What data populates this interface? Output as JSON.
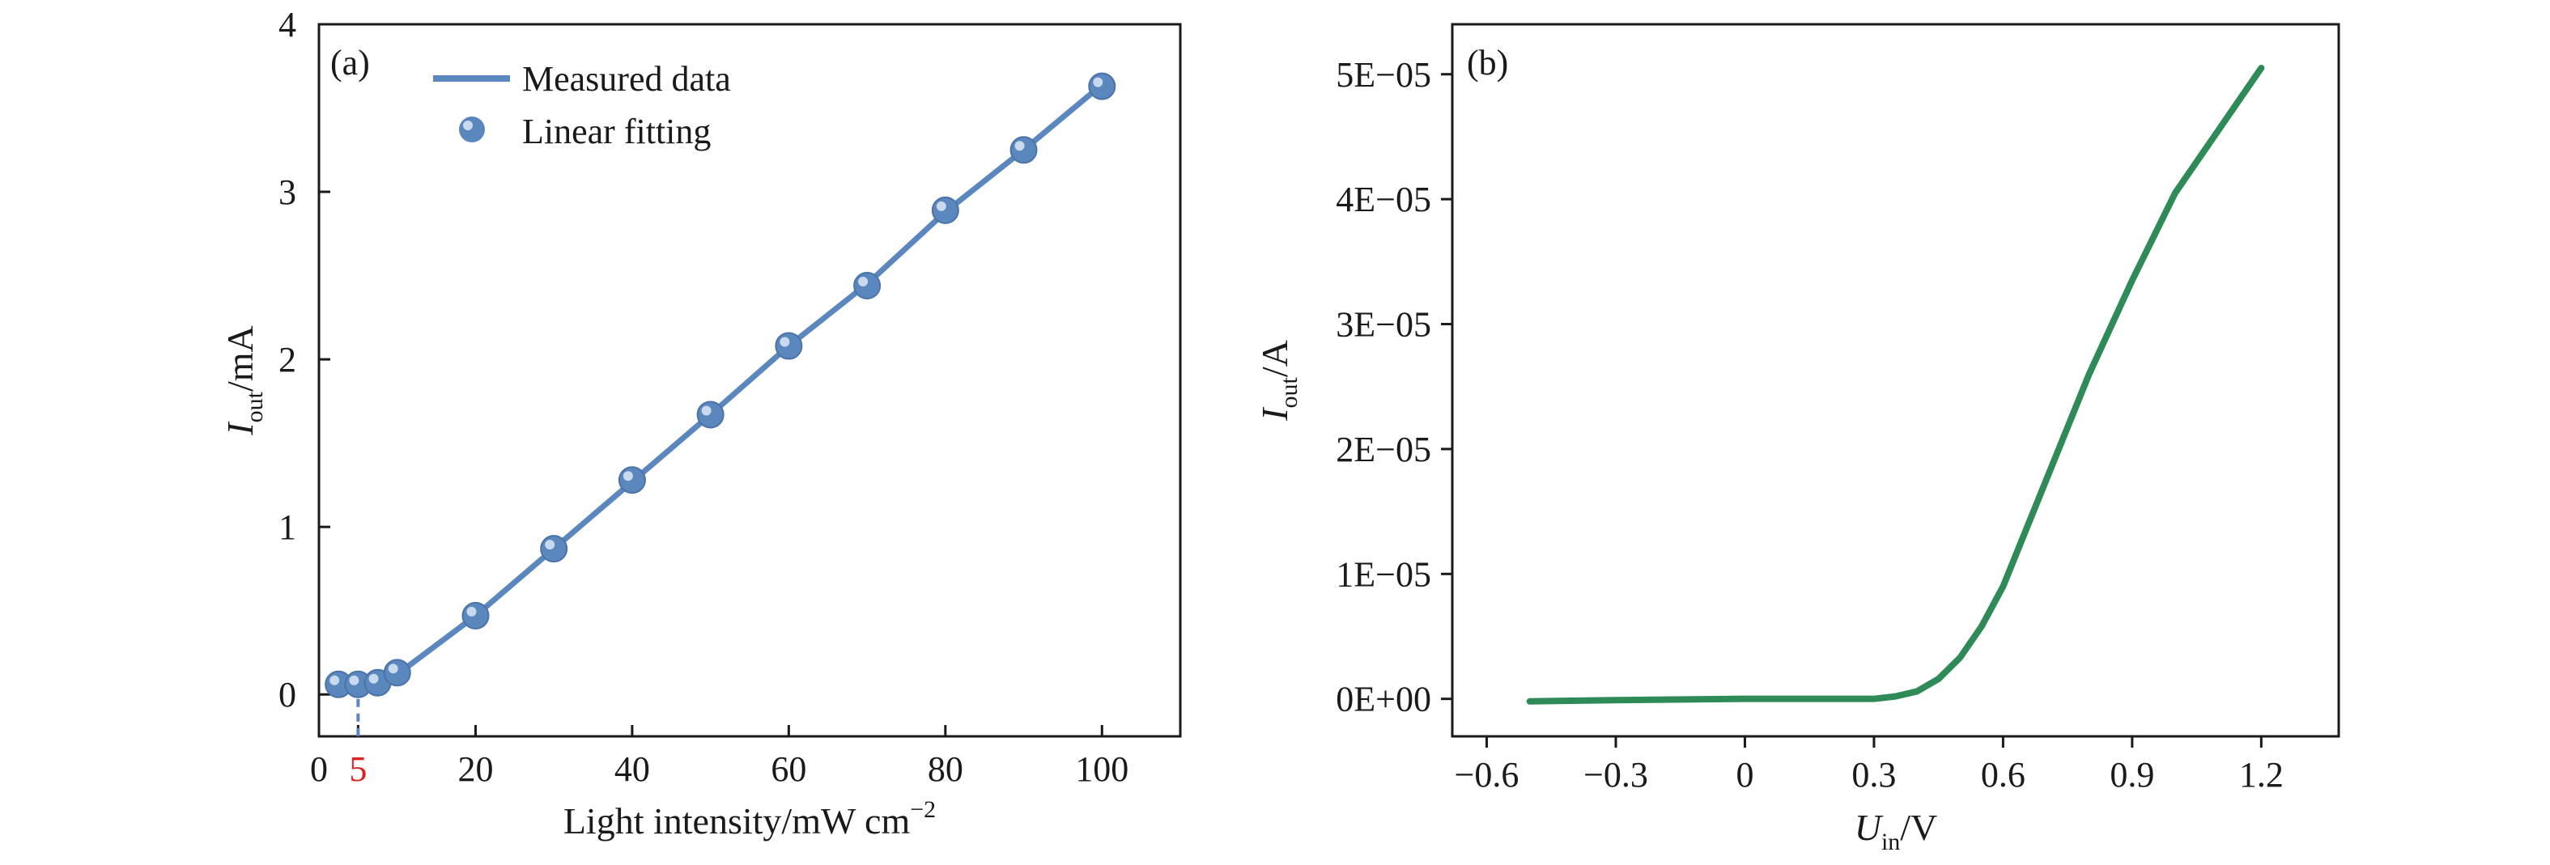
{
  "chart_data": [
    {
      "panel_label": "(a)",
      "type": "line",
      "xlabel": "Light intensity/mW cm",
      "xlabel_sup": "−2",
      "ylabel_main": "I",
      "ylabel_sub": "out",
      "ylabel_unit": "/mA",
      "xlim": [
        0,
        110
      ],
      "ylim": [
        -0.25,
        4
      ],
      "xticks": [
        0,
        5,
        20,
        40,
        60,
        80,
        100
      ],
      "xtick_labels": [
        "0",
        "5",
        "20",
        "40",
        "60",
        "80",
        "100"
      ],
      "xtick_colors": [
        "#1a1a1a",
        "#e02020",
        "#1a1a1a",
        "#1a1a1a",
        "#1a1a1a",
        "#1a1a1a",
        "#1a1a1a"
      ],
      "yticks": [
        0,
        1,
        2,
        3,
        4
      ],
      "ytick_labels": [
        "0",
        "1",
        "2",
        "3",
        "4"
      ],
      "legend_position": "top-left",
      "series": [
        {
          "name": "Measured data",
          "kind": "line",
          "color": "#5b87bf",
          "x": [
            2.5,
            5,
            7.5,
            10,
            20,
            30,
            40,
            50,
            60,
            70,
            80,
            90,
            100
          ],
          "y": [
            0.06,
            0.06,
            0.07,
            0.12,
            0.47,
            0.87,
            1.27,
            1.67,
            2.08,
            2.45,
            2.88,
            3.25,
            3.64
          ]
        },
        {
          "name": "Linear fitting",
          "kind": "markers",
          "color": "#5b87bf",
          "x": [
            2.5,
            5,
            7.5,
            10,
            20,
            30,
            40,
            50,
            60,
            70,
            80,
            90,
            100
          ],
          "y": [
            0.06,
            0.06,
            0.07,
            0.13,
            0.47,
            0.87,
            1.28,
            1.67,
            2.08,
            2.44,
            2.89,
            3.25,
            3.63
          ]
        }
      ],
      "annotation": {
        "type": "vertical-dashed-line",
        "x": 5,
        "from_y": 0.06,
        "color": "#5b87bf"
      }
    },
    {
      "panel_label": "(b)",
      "type": "line",
      "xlabel_main": "U",
      "xlabel_sub": "in",
      "xlabel_unit": "/V",
      "ylabel_main": "I",
      "ylabel_sub": "out",
      "ylabel_unit": "/A",
      "xlim": [
        -0.68,
        1.38
      ],
      "ylim": [
        -3e-06,
        5.4e-05
      ],
      "xticks": [
        -0.6,
        -0.3,
        0,
        0.3,
        0.6,
        0.9,
        1.2
      ],
      "xtick_labels": [
        "−0.6",
        "−0.3",
        "0",
        "0.3",
        "0.6",
        "0.9",
        "1.2"
      ],
      "yticks": [
        0,
        1e-05,
        2e-05,
        3e-05,
        4e-05,
        5e-05
      ],
      "ytick_labels": [
        "0E+00",
        "1E−05",
        "2E−05",
        "3E−05",
        "4E−05",
        "5E−05"
      ],
      "series": [
        {
          "kind": "line",
          "color": "#2e8b57",
          "x": [
            -0.5,
            -0.3,
            0,
            0.3,
            0.35,
            0.4,
            0.45,
            0.5,
            0.55,
            0.6,
            0.7,
            0.8,
            0.9,
            1.0,
            1.1,
            1.2
          ],
          "y": [
            -2e-07,
            -1e-07,
            0,
            0,
            2e-07,
            6e-07,
            1.6e-06,
            3.3e-06,
            5.8e-06,
            9e-06,
            1.75e-05,
            2.6e-05,
            3.35e-05,
            4.05e-05,
            4.55e-05,
            5.05e-05
          ]
        }
      ]
    }
  ]
}
